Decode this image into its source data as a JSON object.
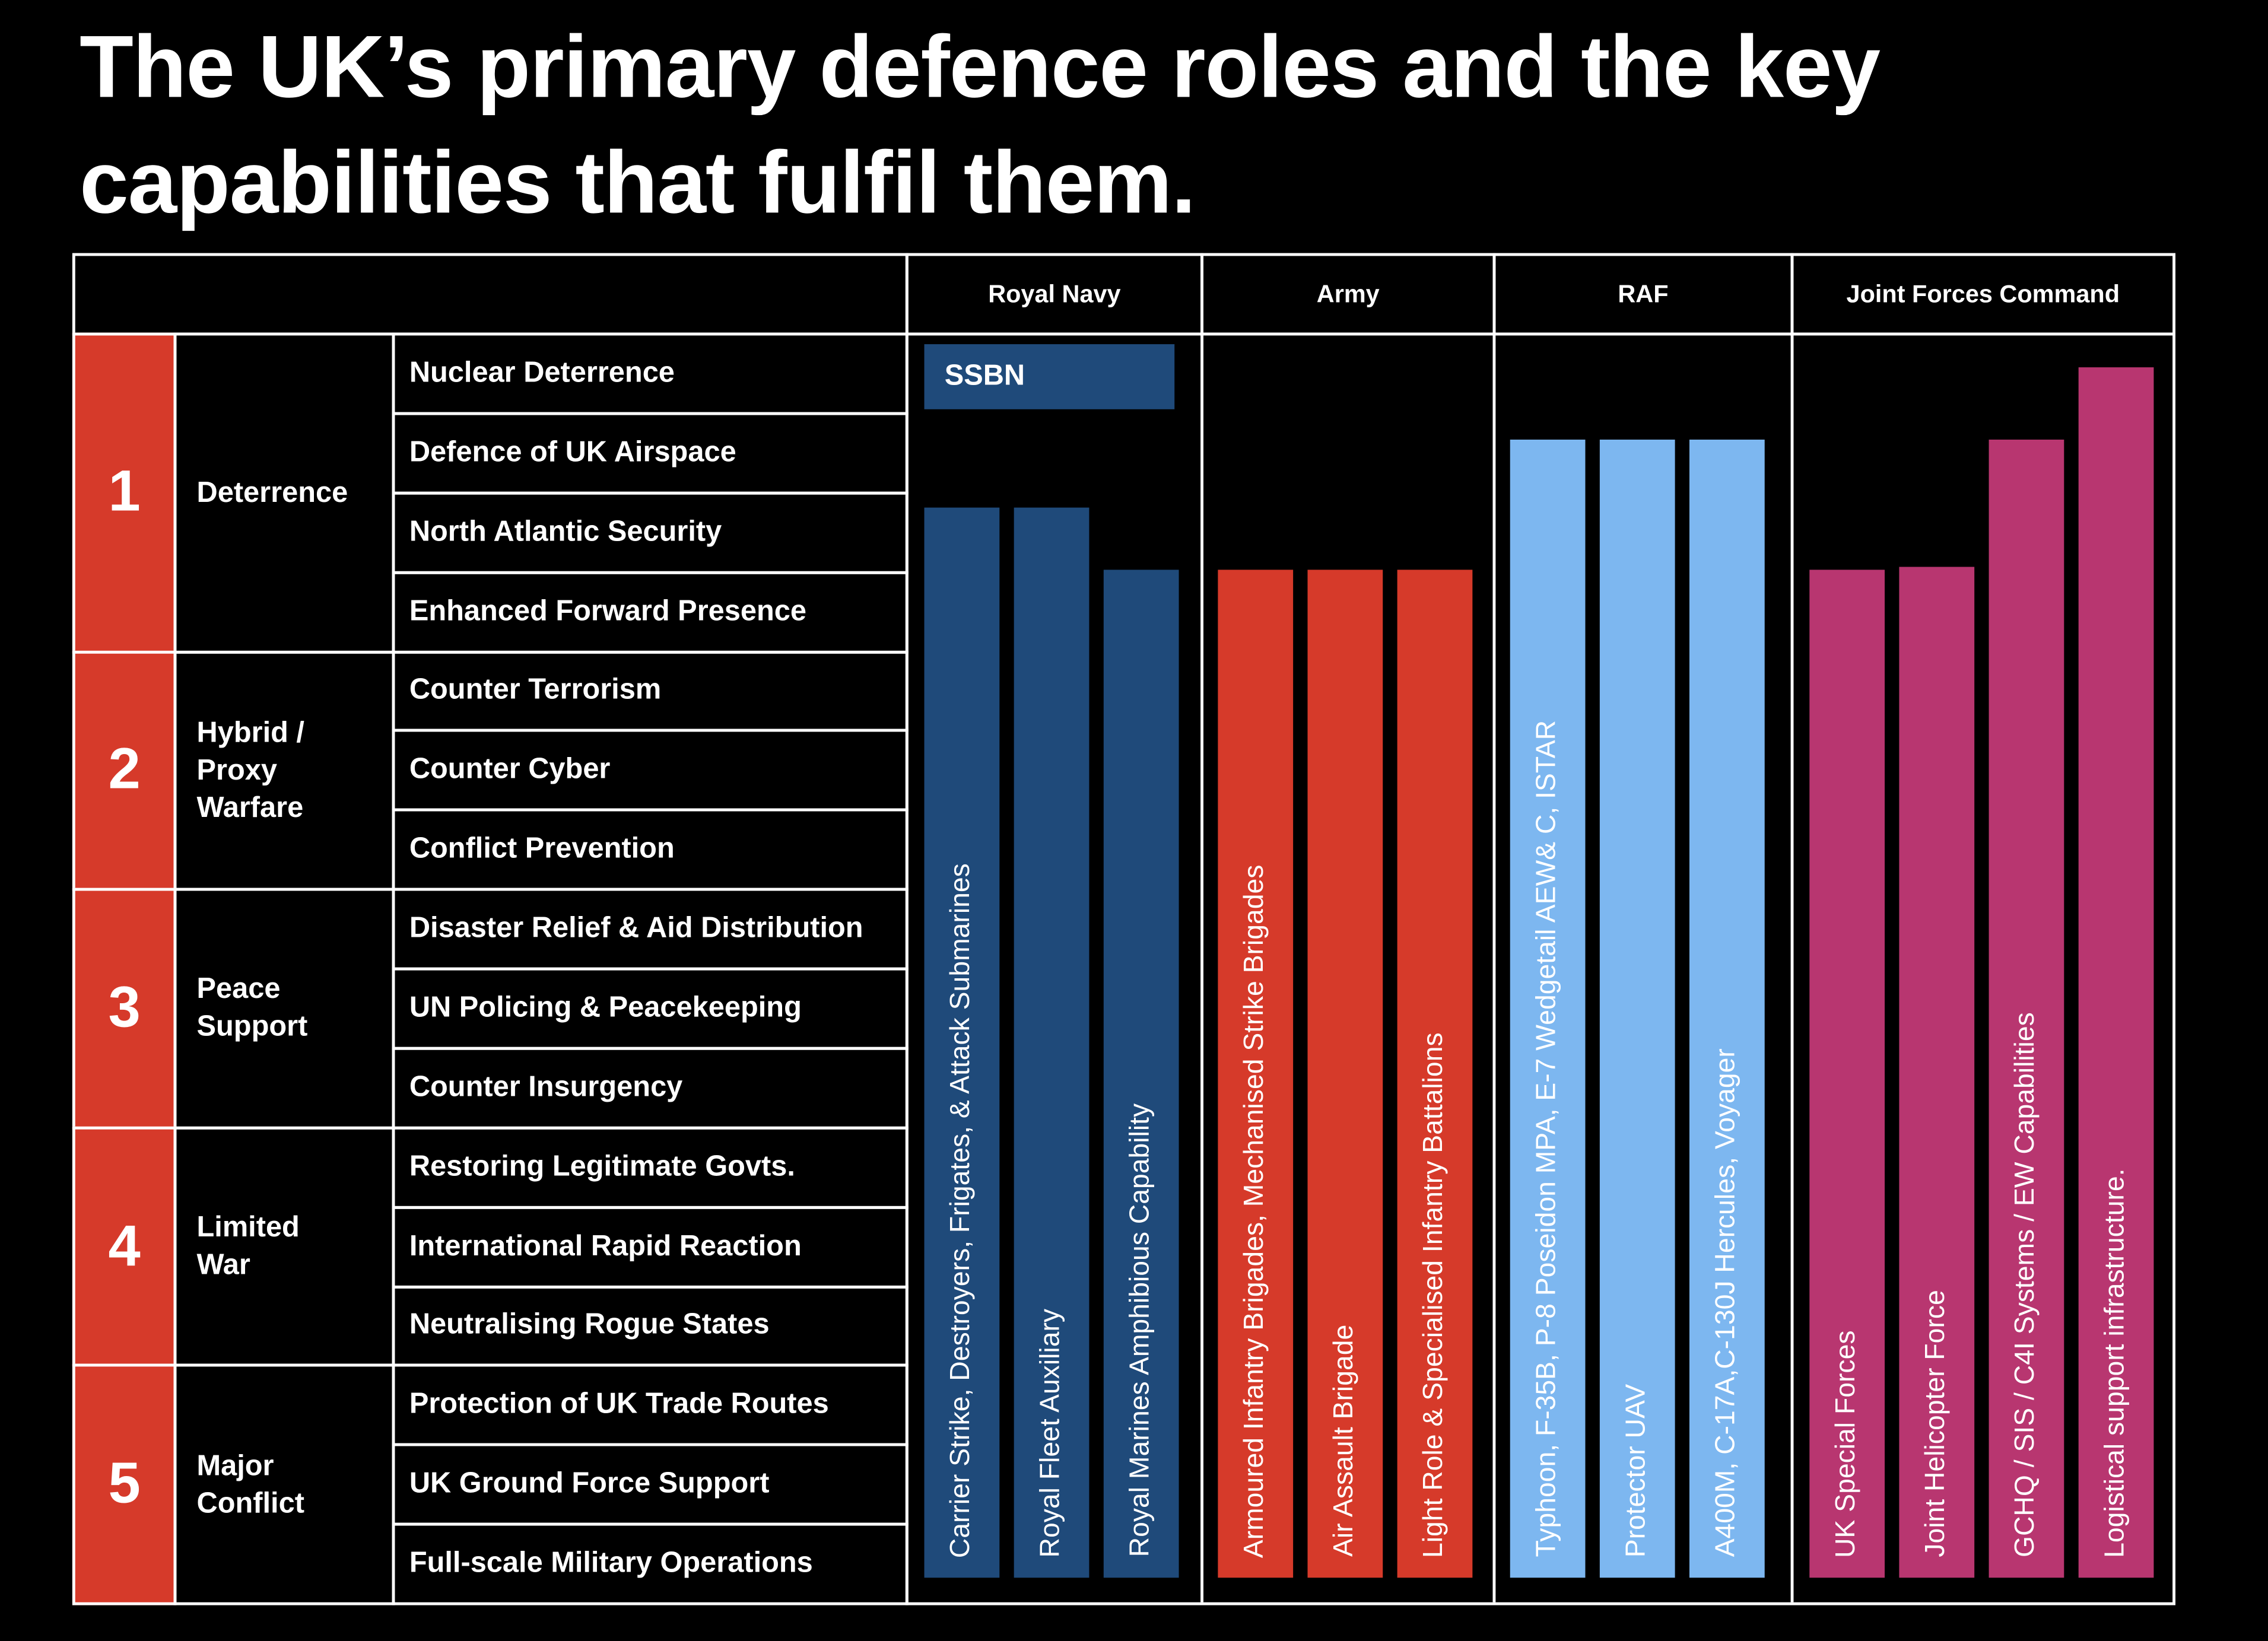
{
  "title": "The UK’s primary defence roles and the key capabilities that fulfil them.",
  "services": [
    {
      "name": "Royal Navy",
      "capabilities": [
        "SSBN",
        "Carrier Strike, Destroyers, Frigates, & Attack Submarines",
        "Royal Fleet Auxiliary",
        "Royal Marines Amphibious Capability"
      ]
    },
    {
      "name": "Army",
      "capabilities": [
        "Armoured Infantry Brigades, Mechanised Strike Brigades",
        "Air Assault Brigade",
        "Light Role & Specialised Infantry Battalions"
      ]
    },
    {
      "name": "RAF",
      "capabilities": [
        "Typhoon, F-35B, P-8 Poseidon MPA, E-7 Wedgetail AEW& C, ISTAR",
        "Protector UAV",
        "A400M, C-17A,C-130J Hercules, Voyager"
      ]
    },
    {
      "name": "Joint Forces Command",
      "capabilities": [
        "UK Special Forces",
        "Joint Helicopter Force",
        "GCHQ / SIS / C4I Systems / EW Capabilities",
        "Logistical support infrastructure."
      ]
    }
  ],
  "roles": [
    {
      "number": 1,
      "name": "Deterrence",
      "tasks": [
        "Nuclear Deterrence",
        "Defence of UK Airspace",
        "North Atlantic Security",
        "Enhanced Forward Presence"
      ]
    },
    {
      "number": 2,
      "name": "Hybrid / Proxy Warfare",
      "tasks": [
        "Counter Terrorism",
        "Counter Cyber",
        "Conflict Prevention"
      ]
    },
    {
      "number": 3,
      "name": "Peace Support",
      "tasks": [
        "Disaster Relief & Aid Distribution",
        "UN Policing & Peacekeeping",
        "Counter Insurgency"
      ]
    },
    {
      "number": 4,
      "name": "Limited War",
      "tasks": [
        "Restoring Legitimate Govts.",
        "International Rapid Reaction",
        "Neutralising Rogue States"
      ]
    },
    {
      "number": 5,
      "name": "Major Conflict",
      "tasks": [
        "Protection of UK Trade Routes",
        "UK Ground Force Support",
        "Full-scale Military Operations"
      ]
    }
  ]
}
